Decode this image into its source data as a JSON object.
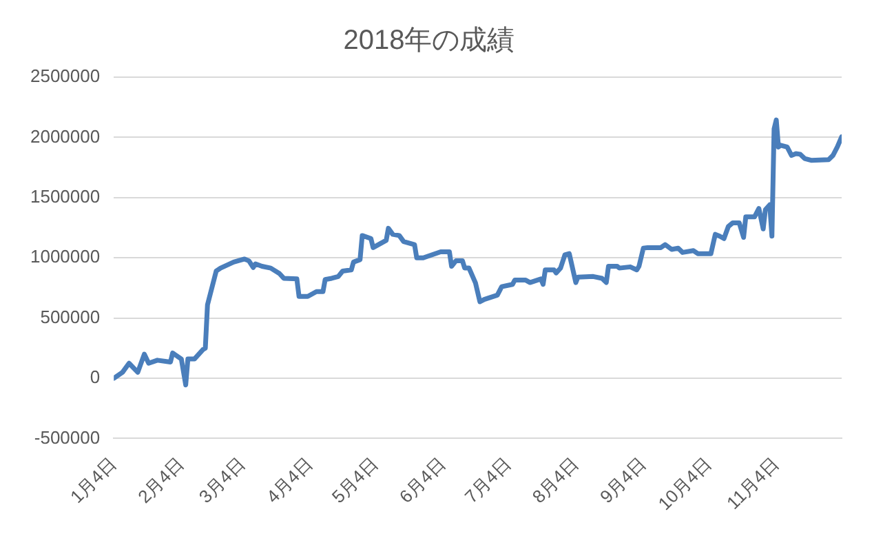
{
  "chart_data": {
    "type": "line",
    "title": "2018年の成績",
    "x": [
      "2018-01-04",
      "2018-01-08",
      "2018-01-11",
      "2018-01-15",
      "2018-01-18",
      "2018-01-20",
      "2018-01-24",
      "2018-01-30",
      "2018-01-31",
      "2018-02-04",
      "2018-02-06",
      "2018-02-07",
      "2018-02-10",
      "2018-02-14",
      "2018-02-15",
      "2018-02-16",
      "2018-02-20",
      "2018-02-22",
      "2018-02-28",
      "2018-03-05",
      "2018-03-07",
      "2018-03-09",
      "2018-03-10",
      "2018-03-13",
      "2018-03-17",
      "2018-03-21",
      "2018-03-23",
      "2018-03-29",
      "2018-03-30",
      "2018-04-03",
      "2018-04-07",
      "2018-04-10",
      "2018-04-11",
      "2018-04-14",
      "2018-04-17",
      "2018-04-19",
      "2018-04-23",
      "2018-04-24",
      "2018-04-27",
      "2018-04-28",
      "2018-05-02",
      "2018-05-03",
      "2018-05-09",
      "2018-05-10",
      "2018-05-12",
      "2018-05-15",
      "2018-05-17",
      "2018-05-22",
      "2018-05-23",
      "2018-05-26",
      "2018-06-03",
      "2018-06-07",
      "2018-06-08",
      "2018-06-10",
      "2018-06-13",
      "2018-06-14",
      "2018-06-16",
      "2018-06-19",
      "2018-06-21",
      "2018-06-23",
      "2018-06-29",
      "2018-07-01",
      "2018-07-06",
      "2018-07-07",
      "2018-07-12",
      "2018-07-14",
      "2018-07-19",
      "2018-07-20",
      "2018-07-21",
      "2018-07-25",
      "2018-07-26",
      "2018-07-28",
      "2018-07-30",
      "2018-08-01",
      "2018-08-04",
      "2018-08-05",
      "2018-08-12",
      "2018-08-16",
      "2018-08-18",
      "2018-08-19",
      "2018-08-23",
      "2018-08-24",
      "2018-08-29",
      "2018-09-01",
      "2018-09-02",
      "2018-09-04",
      "2018-09-06",
      "2018-09-12",
      "2018-09-14",
      "2018-09-17",
      "2018-09-20",
      "2018-09-22",
      "2018-09-27",
      "2018-09-29",
      "2018-10-05",
      "2018-10-07",
      "2018-10-09",
      "2018-10-11",
      "2018-10-13",
      "2018-10-15",
      "2018-10-18",
      "2018-10-20",
      "2018-10-21",
      "2018-10-25",
      "2018-10-27",
      "2018-10-29",
      "2018-10-30",
      "2018-11-01",
      "2018-11-02",
      "2018-11-03",
      "2018-11-04",
      "2018-11-05",
      "2018-11-06",
      "2018-11-09",
      "2018-11-11",
      "2018-11-13",
      "2018-11-15",
      "2018-11-17",
      "2018-11-20",
      "2018-11-28",
      "2018-11-30",
      "2018-12-02",
      "2018-12-04"
    ],
    "series": [
      {
        "color": "#4a7ebb",
        "values": [
          0,
          50000,
          125000,
          50000,
          200000,
          125000,
          150000,
          135000,
          210000,
          160000,
          -55000,
          160000,
          160000,
          240000,
          250000,
          610000,
          890000,
          915000,
          965000,
          990000,
          975000,
          920000,
          950000,
          930000,
          915000,
          870000,
          830000,
          825000,
          680000,
          680000,
          720000,
          720000,
          820000,
          830000,
          845000,
          890000,
          900000,
          965000,
          985000,
          1185000,
          1160000,
          1085000,
          1145000,
          1245000,
          1195000,
          1185000,
          1135000,
          1110000,
          1000000,
          1000000,
          1050000,
          1050000,
          930000,
          975000,
          975000,
          915000,
          915000,
          790000,
          635000,
          655000,
          690000,
          760000,
          780000,
          815000,
          815000,
          795000,
          825000,
          780000,
          900000,
          900000,
          875000,
          915000,
          1025000,
          1035000,
          795000,
          840000,
          845000,
          830000,
          795000,
          930000,
          930000,
          915000,
          925000,
          900000,
          930000,
          1080000,
          1085000,
          1085000,
          1110000,
          1070000,
          1080000,
          1045000,
          1060000,
          1035000,
          1035000,
          1195000,
          1180000,
          1160000,
          1260000,
          1290000,
          1290000,
          1170000,
          1340000,
          1340000,
          1410000,
          1240000,
          1400000,
          1440000,
          1180000,
          2070000,
          2145000,
          1920000,
          1935000,
          1920000,
          1850000,
          1865000,
          1860000,
          1825000,
          1810000,
          1815000,
          1850000,
          1920000,
          2005000
        ]
      }
    ],
    "xlim": [
      "2018-01-04",
      "2018-12-04"
    ],
    "xticks": [
      {
        "value": "2018-01-04",
        "label": "1月4日"
      },
      {
        "value": "2018-02-04",
        "label": "2月4日"
      },
      {
        "value": "2018-03-04",
        "label": "3月4日"
      },
      {
        "value": "2018-04-04",
        "label": "4月4日"
      },
      {
        "value": "2018-05-04",
        "label": "5月4日"
      },
      {
        "value": "2018-06-04",
        "label": "6月4日"
      },
      {
        "value": "2018-07-04",
        "label": "7月4日"
      },
      {
        "value": "2018-08-04",
        "label": "8月4日"
      },
      {
        "value": "2018-09-04",
        "label": "9月4日"
      },
      {
        "value": "2018-10-04",
        "label": "10月4日"
      },
      {
        "value": "2018-11-04",
        "label": "11月4日"
      }
    ],
    "ylim": [
      -500000,
      2500000
    ],
    "yticks": [
      -500000,
      0,
      500000,
      1000000,
      1500000,
      2000000,
      2500000
    ],
    "grid": "y",
    "legend": false,
    "marker": "none",
    "line_style": "solid"
  }
}
